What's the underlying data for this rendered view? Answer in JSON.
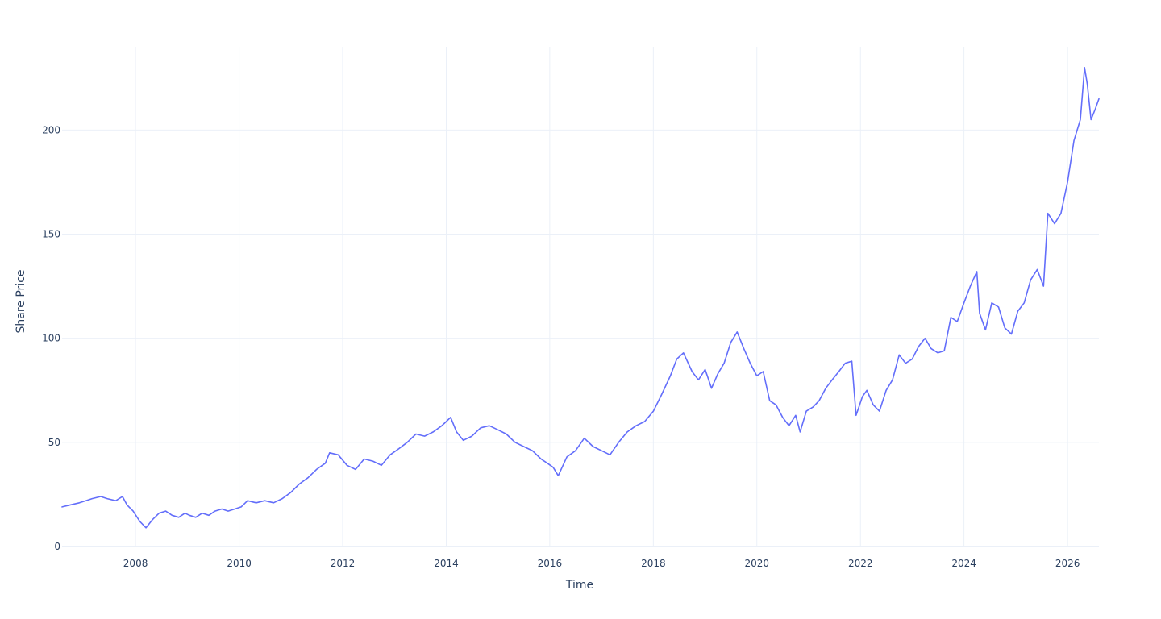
{
  "colors": {
    "line": "#636efa",
    "grid": "#ebf0f8",
    "text": "#2a3f5f",
    "background": "#ffffff"
  },
  "chart_data": {
    "type": "line",
    "title": "",
    "xlabel": "Time",
    "ylabel": "Share Price",
    "x_range": [
      "2006-08-01",
      "2026-08-10"
    ],
    "ylim": [
      0,
      240
    ],
    "grid": true,
    "legend": "none",
    "x_ticks": [
      "2008",
      "2010",
      "2012",
      "2014",
      "2016",
      "2018",
      "2020",
      "2022",
      "2024",
      "2026"
    ],
    "y_ticks": [
      "0",
      "50",
      "100",
      "150",
      "200"
    ],
    "series": [
      {
        "x": [
          "2006-08-01",
          "2006-10-01",
          "2006-12-01",
          "2007-01-15",
          "2007-03-01",
          "2007-05-01",
          "2007-06-15",
          "2007-08-15",
          "2007-10-01",
          "2007-11-01",
          "2007-12-15",
          "2008-02-01",
          "2008-03-15",
          "2008-05-01",
          "2008-06-15",
          "2008-08-01",
          "2008-09-15",
          "2008-11-01",
          "2008-12-15",
          "2009-01-15",
          "2009-03-01",
          "2009-04-15",
          "2009-06-01",
          "2009-07-15",
          "2009-09-01",
          "2009-10-15",
          "2009-12-01",
          "2010-01-15",
          "2010-03-01",
          "2010-05-01",
          "2010-07-01",
          "2010-09-01",
          "2010-11-01",
          "2011-01-01",
          "2011-03-01",
          "2011-05-01",
          "2011-07-01",
          "2011-09-01",
          "2011-10-01",
          "2011-12-01",
          "2012-02-01",
          "2012-04-01",
          "2012-06-01",
          "2012-08-01",
          "2012-10-01",
          "2012-12-01",
          "2013-02-01",
          "2013-04-01",
          "2013-06-01",
          "2013-08-01",
          "2013-10-01",
          "2013-12-01",
          "2014-01-01",
          "2014-02-01",
          "2014-03-15",
          "2014-05-01",
          "2014-07-01",
          "2014-09-01",
          "2014-11-01",
          "2015-01-01",
          "2015-03-01",
          "2015-05-01",
          "2015-07-01",
          "2015-09-01",
          "2015-11-01",
          "2015-12-15",
          "2016-01-25",
          "2016-03-01",
          "2016-05-01",
          "2016-07-01",
          "2016-09-01",
          "2016-11-01",
          "2017-01-01",
          "2017-03-01",
          "2017-05-01",
          "2017-07-01",
          "2017-09-01",
          "2017-11-01",
          "2018-01-01",
          "2018-03-01",
          "2018-05-01",
          "2018-06-15",
          "2018-08-01",
          "2018-10-01",
          "2018-11-15",
          "2019-01-01",
          "2019-02-15",
          "2019-04-01",
          "2019-05-15",
          "2019-07-01",
          "2019-08-15",
          "2019-10-01",
          "2019-11-15",
          "2020-01-01",
          "2020-02-15",
          "2020-04-01",
          "2020-05-15",
          "2020-07-01",
          "2020-08-15",
          "2020-10-01",
          "2020-11-01",
          "2020-12-15",
          "2021-02-01",
          "2021-03-15",
          "2021-05-01",
          "2021-06-15",
          "2021-08-01",
          "2021-09-15",
          "2021-11-01",
          "2021-12-01",
          "2022-01-15",
          "2022-02-15",
          "2022-04-01",
          "2022-05-15",
          "2022-07-01",
          "2022-08-15",
          "2022-10-01",
          "2022-11-15",
          "2023-01-01",
          "2023-02-15",
          "2023-04-01",
          "2023-05-15",
          "2023-07-01",
          "2023-08-15",
          "2023-10-01",
          "2023-11-15",
          "2024-01-01",
          "2024-02-15",
          "2024-04-01",
          "2024-04-20",
          "2024-06-01",
          "2024-07-15",
          "2024-09-01",
          "2024-10-15",
          "2024-12-01",
          "2025-01-15",
          "2025-03-01",
          "2025-04-15",
          "2025-06-01",
          "2025-07-15",
          "2025-08-15",
          "2025-10-01",
          "2025-11-15",
          "2026-01-01",
          "2026-02-15",
          "2026-04-01",
          "2026-05-01",
          "2026-05-20",
          "2026-06-15",
          "2026-07-15",
          "2026-08-10"
        ],
        "y": [
          19,
          20,
          21,
          22,
          23,
          24,
          23,
          22,
          24,
          20,
          17,
          12,
          9,
          13,
          16,
          17,
          15,
          14,
          16,
          15,
          14,
          16,
          15,
          17,
          18,
          17,
          18,
          19,
          22,
          21,
          22,
          21,
          23,
          26,
          30,
          33,
          37,
          40,
          45,
          44,
          39,
          37,
          42,
          41,
          39,
          44,
          47,
          50,
          54,
          53,
          55,
          58,
          60,
          62,
          55,
          51,
          53,
          57,
          58,
          56,
          54,
          50,
          48,
          46,
          42,
          40,
          38,
          34,
          43,
          46,
          52,
          48,
          46,
          44,
          50,
          55,
          58,
          60,
          65,
          73,
          82,
          90,
          93,
          84,
          80,
          85,
          76,
          83,
          88,
          98,
          103,
          95,
          88,
          82,
          84,
          70,
          68,
          62,
          58,
          63,
          55,
          65,
          67,
          70,
          76,
          80,
          84,
          88,
          89,
          63,
          72,
          75,
          68,
          65,
          75,
          80,
          92,
          88,
          90,
          96,
          100,
          95,
          93,
          94,
          110,
          108,
          117,
          125,
          132,
          112,
          104,
          117,
          115,
          105,
          102,
          113,
          117,
          128,
          133,
          125,
          160,
          155,
          160,
          175,
          195,
          205,
          230,
          222,
          205,
          210,
          215
        ]
      }
    ]
  }
}
